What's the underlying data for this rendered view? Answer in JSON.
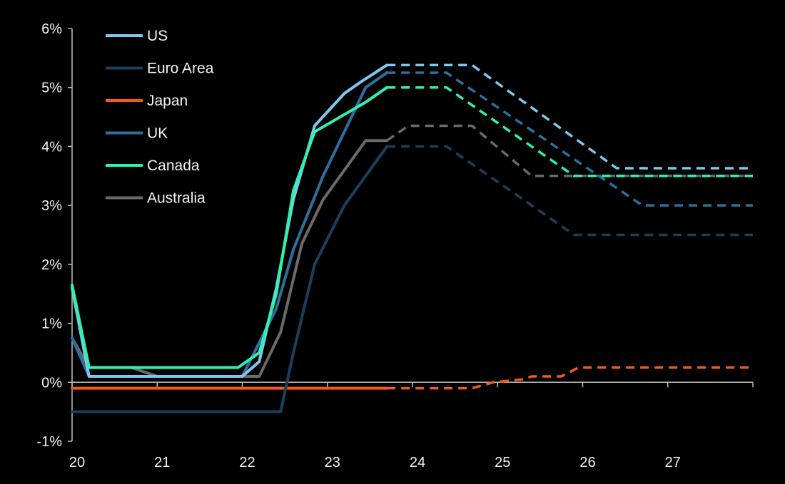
{
  "chart_data": {
    "type": "line",
    "title": "",
    "xlabel": "",
    "ylabel": "",
    "x_ticks": [
      "20",
      "21",
      "22",
      "23",
      "24",
      "25",
      "26",
      "27"
    ],
    "y_ticks": [
      "6%",
      "5%",
      "4%",
      "3%",
      "2%",
      "1%",
      "0%",
      "-1%"
    ],
    "xlim": [
      20,
      28
    ],
    "ylim": [
      -1,
      6
    ],
    "grid": false,
    "legend_position": "top-left",
    "actual_end": 23.7,
    "series": [
      {
        "name": "US",
        "color": "#7ec8f0",
        "points": [
          [
            20,
            1.6
          ],
          [
            20.2,
            0.1
          ],
          [
            21,
            0.1
          ],
          [
            22,
            0.1
          ],
          [
            22.2,
            0.35
          ],
          [
            22.4,
            1.6
          ],
          [
            22.6,
            3.1
          ],
          [
            22.85,
            4.35
          ],
          [
            23.2,
            4.9
          ],
          [
            23.4,
            5.1
          ],
          [
            23.7,
            5.38
          ],
          [
            24.7,
            5.38
          ],
          [
            26.4,
            3.63
          ],
          [
            28,
            3.63
          ]
        ]
      },
      {
        "name": "Euro Area",
        "color": "#1b3f5c",
        "points": [
          [
            20,
            -0.5
          ],
          [
            21,
            -0.5
          ],
          [
            22,
            -0.5
          ],
          [
            22.45,
            -0.5
          ],
          [
            22.6,
            0.5
          ],
          [
            22.85,
            2.0
          ],
          [
            23.2,
            3.0
          ],
          [
            23.7,
            4.0
          ],
          [
            24.4,
            4.0
          ],
          [
            25.9,
            2.5
          ],
          [
            28,
            2.5
          ]
        ]
      },
      {
        "name": "Japan",
        "color": "#f05a1e",
        "points": [
          [
            20,
            -0.1
          ],
          [
            24.7,
            -0.1
          ],
          [
            24.95,
            0.0
          ],
          [
            25.3,
            0.05
          ],
          [
            25.4,
            0.1
          ],
          [
            25.75,
            0.1
          ],
          [
            25.95,
            0.25
          ],
          [
            28,
            0.25
          ]
        ]
      },
      {
        "name": "UK",
        "color": "#2e6f9e",
        "points": [
          [
            20,
            0.75
          ],
          [
            20.2,
            0.1
          ],
          [
            21,
            0.1
          ],
          [
            22,
            0.1
          ],
          [
            22.4,
            1.25
          ],
          [
            22.6,
            2.25
          ],
          [
            22.95,
            3.5
          ],
          [
            23.2,
            4.25
          ],
          [
            23.45,
            5.0
          ],
          [
            23.7,
            5.25
          ],
          [
            24.4,
            5.25
          ],
          [
            26.7,
            3.0
          ],
          [
            28,
            3.0
          ]
        ]
      },
      {
        "name": "Canada",
        "color": "#2ef2b0",
        "points": [
          [
            20,
            1.65
          ],
          [
            20.2,
            0.25
          ],
          [
            21,
            0.25
          ],
          [
            21.95,
            0.25
          ],
          [
            22.2,
            0.5
          ],
          [
            22.4,
            1.5
          ],
          [
            22.6,
            3.25
          ],
          [
            22.85,
            4.25
          ],
          [
            23.45,
            4.75
          ],
          [
            23.7,
            5.0
          ],
          [
            24.4,
            5.0
          ],
          [
            25.9,
            3.5
          ],
          [
            28,
            3.5
          ]
        ]
      },
      {
        "name": "Australia",
        "color": "#6a6a6a",
        "points": [
          [
            20,
            0.75
          ],
          [
            20.2,
            0.25
          ],
          [
            20.7,
            0.25
          ],
          [
            21,
            0.1
          ],
          [
            22.2,
            0.1
          ],
          [
            22.45,
            0.85
          ],
          [
            22.7,
            2.35
          ],
          [
            22.95,
            3.1
          ],
          [
            23.45,
            4.1
          ],
          [
            23.7,
            4.1
          ],
          [
            23.95,
            4.35
          ],
          [
            24.7,
            4.35
          ],
          [
            25.4,
            3.5
          ],
          [
            28,
            3.5
          ]
        ]
      }
    ]
  }
}
